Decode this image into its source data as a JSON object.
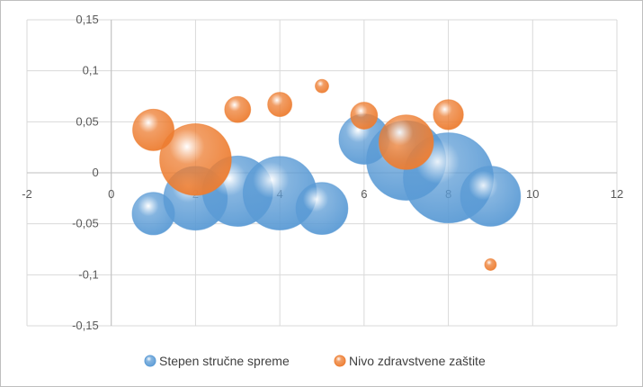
{
  "chart_data": {
    "type": "bubble",
    "x_ticks": [
      "-2",
      "0",
      "2",
      "4",
      "6",
      "8",
      "10",
      "12"
    ],
    "y_ticks": [
      "0,15",
      "0,1",
      "0,05",
      "0",
      "-0,05",
      "-0,1",
      "-0,15"
    ],
    "xlim": [
      -2,
      12
    ],
    "ylim": [
      -0.15,
      0.15
    ],
    "grid": true,
    "legend_position": "bottom",
    "series": [
      {
        "name": "Stepen stručne spreme",
        "color": "#5b9bd5",
        "points": [
          {
            "x": 1,
            "y": -0.04,
            "size": 0.2
          },
          {
            "x": 2,
            "y": -0.025,
            "size": 0.45
          },
          {
            "x": 3,
            "y": -0.018,
            "size": 0.55
          },
          {
            "x": 4,
            "y": -0.02,
            "size": 0.6
          },
          {
            "x": 5,
            "y": -0.035,
            "size": 0.3
          },
          {
            "x": 6,
            "y": 0.033,
            "size": 0.28
          },
          {
            "x": 7,
            "y": 0.012,
            "size": 0.7
          },
          {
            "x": 8,
            "y": -0.005,
            "size": 0.9
          },
          {
            "x": 9,
            "y": -0.023,
            "size": 0.4
          }
        ]
      },
      {
        "name": "Nivo zdravstvene zaštite",
        "color": "#ed7d31",
        "points": [
          {
            "x": 1,
            "y": 0.042,
            "size": 0.19
          },
          {
            "x": 2,
            "y": 0.013,
            "size": 0.57
          },
          {
            "x": 3,
            "y": 0.062,
            "size": 0.075
          },
          {
            "x": 4,
            "y": 0.067,
            "size": 0.065
          },
          {
            "x": 5,
            "y": 0.085,
            "size": 0.02
          },
          {
            "x": 6,
            "y": 0.056,
            "size": 0.08
          },
          {
            "x": 7,
            "y": 0.03,
            "size": 0.33
          },
          {
            "x": 8,
            "y": 0.057,
            "size": 0.1
          },
          {
            "x": 9,
            "y": -0.09,
            "size": 0.015
          }
        ]
      }
    ]
  }
}
